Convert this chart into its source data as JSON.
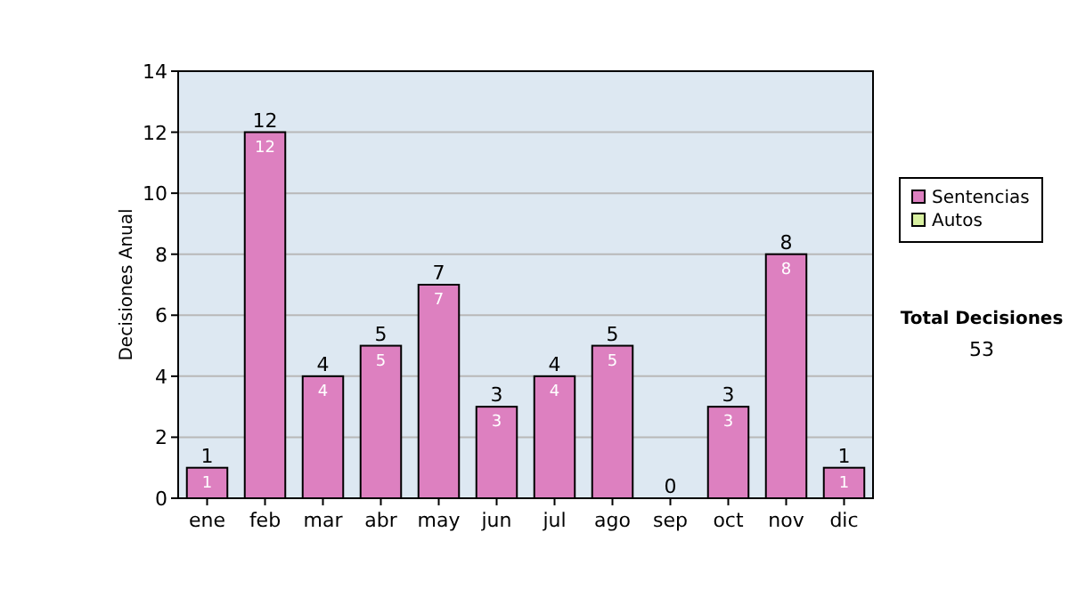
{
  "chart_data": {
    "type": "bar",
    "ylabel": "Decisiones Anual",
    "categories": [
      "ene",
      "feb",
      "mar",
      "abr",
      "may",
      "jun",
      "jul",
      "ago",
      "sep",
      "oct",
      "nov",
      "dic"
    ],
    "stacked": true,
    "series": [
      {
        "name": "Sentencias",
        "color": "#dd80c0",
        "values": [
          1,
          12,
          4,
          5,
          7,
          3,
          4,
          5,
          0,
          3,
          8,
          1
        ],
        "value_labels": [
          "1",
          "12",
          "4",
          "5",
          "7",
          "3",
          "4",
          "5",
          null,
          "3",
          "8",
          "1"
        ]
      },
      {
        "name": "Autos",
        "color": "#d8f0a0",
        "values": [
          0,
          0,
          0,
          0,
          0,
          0,
          0,
          0,
          0,
          0,
          0,
          0
        ]
      }
    ],
    "totals": [
      "1",
      "12",
      "4",
      "5",
      "7",
      "3",
      "4",
      "5",
      "0",
      "3",
      "8",
      "1"
    ],
    "ylim": [
      0,
      14
    ],
    "yticks": [
      0,
      2,
      4,
      6,
      8,
      10,
      12,
      14
    ],
    "grid": "y",
    "legend": "right",
    "annotations": [
      "Total Decisiones",
      "53"
    ]
  }
}
